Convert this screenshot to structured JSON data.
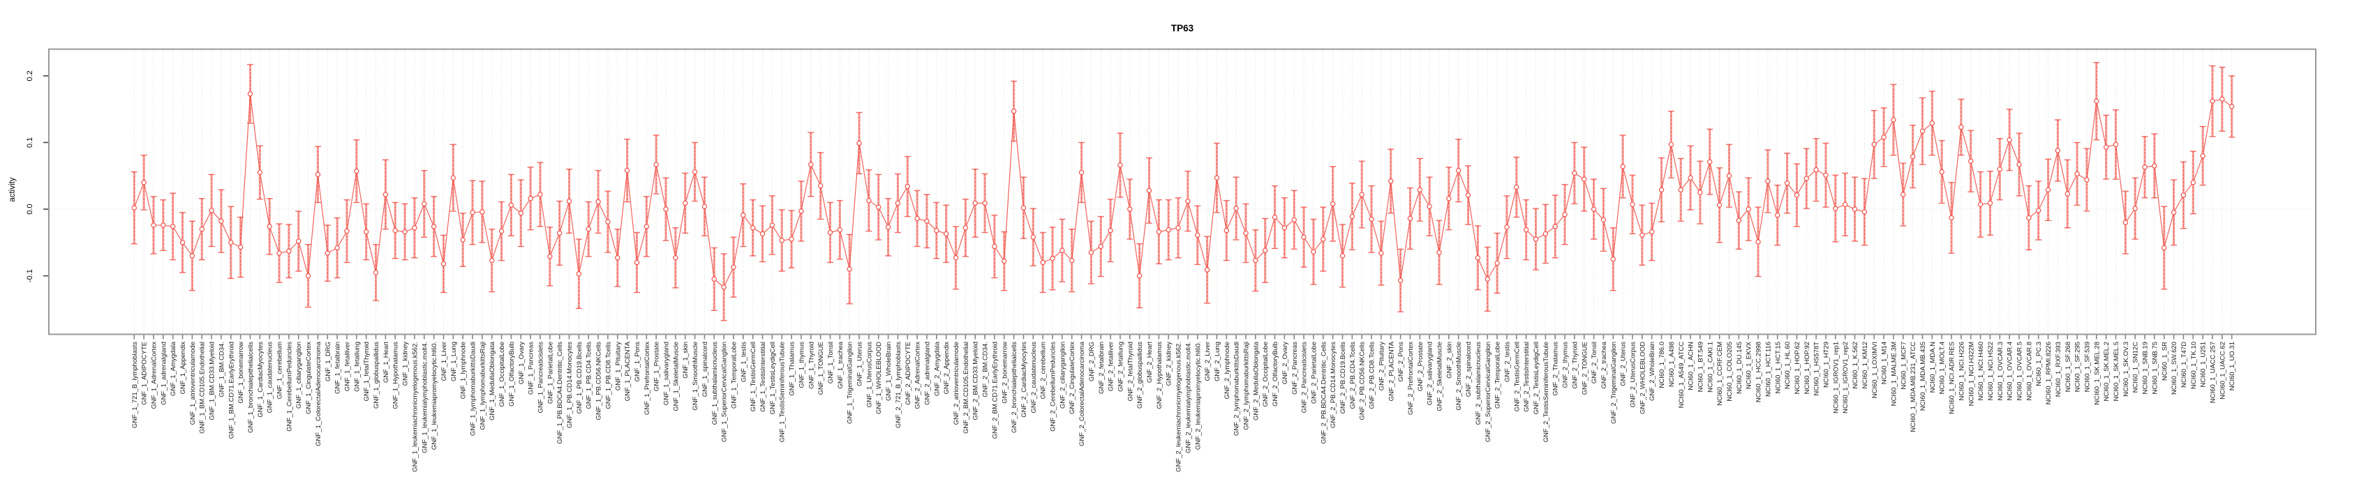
{
  "figure": {
    "title": "TP63"
  },
  "chart_data": {
    "type": "line",
    "subtype": "point-estimates-with-error-bars",
    "title": "TP63",
    "xlabel": "",
    "ylabel": "activity",
    "ylim": [
      -0.188,
      0.24
    ],
    "yticks": [
      0.2,
      0.1,
      0.0,
      -0.1
    ],
    "ytick_labels": [
      "0.2",
      "0.1",
      "0.0",
      "-0.1"
    ],
    "grid": "dotted vertical line at every category; dotted horizontal line at y=0",
    "legend_position": "none",
    "marker": "open-circle",
    "error_bars": true,
    "colors": {
      "point_line": "#f0524a",
      "error_bar": "#f6a39d",
      "grid": "#d6d6d6",
      "frame": "#999999",
      "x_tick": "#828282",
      "tick_label": "#1a1a1a",
      "title": "#000000"
    },
    "categories": [
      "GNF_1_721_B_lymphoblasts",
      "GNF_1_ADIPOCYTE",
      "GNF_1_AdrenalCortex",
      "GNF_1_adrenalgland",
      "GNF_1_Amygdala",
      "GNF_1_Appendix",
      "GNF_1_atrioventricularnode",
      "GNF_1_BM.CD105.Endothelial",
      "GNF_1_BM.CD33.Myeloid",
      "GNF_1_BM.CD34.",
      "GNF_1_BM.CD71.EarlyErythroid",
      "GNF_1_bonemarrow",
      "GNF_1_bronchialepithelialcells",
      "GNF_1_CardiacMyocytes",
      "GNF_1_caudatenucleus",
      "GNF_1_cerebellum",
      "GNF_1_CerebellumPeduncles",
      "GNF_1_ciliaryganglion",
      "GNF_1_CingulateCortex",
      "GNF_1_ColorectalAdenocarcinoma",
      "GNF_1_DRG",
      "GNF_1_fetalbrain",
      "GNF_1_fetalliver",
      "GNF_1_fetallung",
      "GNF_1_fetalThyroid",
      "GNF_1_globuspallidus",
      "GNF_1_Heart",
      "GNF_1_Hypothalamus",
      "GNF_1_kidney",
      "GNF_1_leukemiachronicmyelogenous.k562.",
      "GNF_1_leukemialymphoblastic.molt4.",
      "GNF_1_leukemiapromyelocytic.hl60.",
      "GNF_1_Liver",
      "GNF_1_Lung",
      "GNF_1_lymphnode",
      "GNF_1_lymphomaburkittsDaudi",
      "GNF_1_lymphomaburkittsRaji",
      "GNF_1_MedullaOblongata",
      "GNF_1_OccipitalLobe",
      "GNF_1_OlfactoryBulb",
      "GNF_1_Ovary",
      "GNF_1_Pancreas",
      "GNF_1_Pancreaticislets",
      "GNF_1_ParietalLobe",
      "GNF_1_PB.BDCA4.Dentritic_Cells",
      "GNF_1_PB.CD14.Monocytes",
      "GNF_1_PB.CD19.Bcells",
      "GNF_1_PB.CD4.Tcells",
      "GNF_1_PB.CD56.NKCells",
      "GNF_1_PB.CD8.Tcells",
      "GNF_1_Pituitary",
      "GNF_1_PLACENTA",
      "GNF_1_Pons",
      "GNF_1_PrefrontalCortex",
      "GNF_1_Prostate",
      "GNF_1_salivarygland",
      "GNF_1_SkeletalMuscle",
      "GNF_1_skin",
      "GNF_1_SmoothMuscle",
      "GNF_1_spinalcord",
      "GNF_1_subthalamicnucleus",
      "GNF_1_SuperiorCervicalGanglion",
      "GNF_1_TemporalLobe",
      "GNF_1_testis",
      "GNF_1_TestisGermCell",
      "GNF_1_TestisInterstitial",
      "GNF_1_TestisLeydigCell",
      "GNF_1_TestisSeminiferousTubule",
      "GNF_1_Thalamus",
      "GNF_1_thymus",
      "GNF_1_Thyroid",
      "GNF_1_TONGUE",
      "GNF_1_Tonsil",
      "GNF_1_trachea",
      "GNF_1_TrigeminalGanglion",
      "GNF_1_Uterus",
      "GNF_1_UterusCorpus",
      "GNF_1_WHOLEBLOOD",
      "GNF_1_WholeBrain",
      "GNF_2_721_B_lymphoblasts",
      "GNF_2_ADIPOCYTE",
      "GNF_2_AdrenalCortex",
      "GNF_2_adrenalgland",
      "GNF_2_Amygdala",
      "GNF_2_Appendix",
      "GNF_2_atrioventricularnode",
      "GNF_2_BM.CD105.Endothelial",
      "GNF_2_BM.CD33.Myeloid",
      "GNF_2_BM.CD34.",
      "GNF_2_BM.CD71.EarlyErythroid",
      "GNF_2_bonemarrow",
      "GNF_2_bronchialepithelialcells",
      "GNF_2_CardiacMyocytes",
      "GNF_2_caudatenucleus",
      "GNF_2_cerebellum",
      "GNF_2_CerebellumPeduncles",
      "GNF_2_ciliaryganglion",
      "GNF_2_CingulateCortex",
      "GNF_2_ColorectalAdenocarcinoma",
      "GNF_2_DRG",
      "GNF_2_fetalbrain",
      "GNF_2_fetalliver",
      "GNF_2_fetallung",
      "GNF_2_fetalThyroid",
      "GNF_2_globuspallidus",
      "GNF_2_Heart",
      "GNF_2_Hypothalamus",
      "GNF_2_kidney",
      "GNF_2_leukemiachronicmyelogenous.k562.",
      "GNF_2_leukemialymphoblastic.molt4.",
      "GNF_2_leukemiapromyelocytic.hl60.",
      "GNF_2_Liver",
      "GNF_2_Lung",
      "GNF_2_lymphnode",
      "GNF_2_lymphomaburkittsDaudi",
      "GNF_2_lymphomaburkittsRaji",
      "GNF_2_MedullaOblongata",
      "GNF_2_OccipitalLobe",
      "GNF_2_OlfactoryBulb",
      "GNF_2_Ovary",
      "GNF_2_Pancreas",
      "GNF_2_Pancreaticislets",
      "GNF_2_ParietalLobe",
      "GNF_2_PB.BDCA4.Dentritic_Cells",
      "GNF_2_PB.CD14.Monocytes",
      "GNF_2_PB.CD19.Bcells",
      "GNF_2_PB.CD4.Tcells",
      "GNF_2_PB.CD56.NKCells",
      "GNF_2_PB.CD8.Tcells",
      "GNF_2_Pituitary",
      "GNF_2_PLACENTA",
      "GNF_2_Pons",
      "GNF_2_PrefrontalCortex",
      "GNF_2_Prostate",
      "GNF_2_salivarygland",
      "GNF_2_SkeletalMuscle",
      "GNF_2_skin",
      "GNF_2_SmoothMuscle",
      "GNF_2_spinalcord",
      "GNF_2_subthalamicnucleus",
      "GNF_2_SuperiorCervicalGanglion",
      "GNF_2_TemporalLobe",
      "GNF_2_testis",
      "GNF_2_TestisGermCell",
      "GNF_2_TestisInterstitial",
      "GNF_2_TestisLeydigCell",
      "GNF_2_TestisSeminiferousTubule",
      "GNF_2_Thalamus",
      "GNF_2_thymus",
      "GNF_2_Thyroid",
      "GNF_2_TONGUE",
      "GNF_2_Tonsil",
      "GNF_2_trachea",
      "GNF_2_TrigeminalGanglion",
      "GNF_2_Uterus",
      "GNF_2_UterusCorpus",
      "GNF_2_WHOLEBLOOD",
      "GNF_2_WholeBrain",
      "NCI60_1_786.0",
      "NCI60_1_A498",
      "NCI60_1_A549_ATCC",
      "NCI60_1_ACHN",
      "NCI60_1_BT.549",
      "NCI60_1_CAKI.1",
      "NCI60_1_CCRF.CEM",
      "NCI60_1_COLO205",
      "NCI60_1_DU.145",
      "NCI60_1_EKVX",
      "NCI60_1_HCC.2998",
      "NCI60_1_HCT.116",
      "NCI60_1_HCT.15",
      "NCI60_1_HL.60",
      "NCI60_1_HOP.62",
      "NCI60_1_HOP.92",
      "NCI60_1_HS578T",
      "NCI60_1_HT29",
      "NCI60_1_IGROV1_rep1",
      "NCI60_1_IGROV1_rep2",
      "NCI60_1_K.562",
      "NCI60_1_KM12",
      "NCI60_1_LOXIMVI",
      "NCI60_1_M14",
      "NCI60_1_MALME.3M",
      "NCI60_1_MCF7",
      "NCI60_1_MDA.MB.231_ATCC",
      "NCI60_1_MDA.MB.435",
      "NCI60_1_MDA.N",
      "NCI60_1_MOLT.4",
      "NCI60_1_NCI.ADR.RES",
      "NCI60_1_NCI.H226",
      "NCI60_1_NCI.H322M",
      "NCI60_1_NCI.H460",
      "NCI60_1_NCI.H522",
      "NCI60_1_OVCAR.3",
      "NCI60_1_OVCAR.4",
      "NCI60_1_OVCAR.5",
      "NCI60_1_OVCAR.8",
      "NCI60_1_PC.3",
      "NCI60_1_RPMI.8226",
      "NCI60_1_RXF.393",
      "NCI60_1_SF.268",
      "NCI60_1_SF.295",
      "NCI60_1_SF.539",
      "NCI60_1_SK.MEL.28",
      "NCI60_1_SK.MEL.2",
      "NCI60_1_SK.MEL.5",
      "NCI60_1_SK.OV.3",
      "NCI60_1_SN12C",
      "NCI60_1_SNB.19",
      "NCI60_1_SNB.75",
      "NCI60_1_SR",
      "NCI60_1_SW.620",
      "NCI60_1_T47D",
      "NCI60_1_TK.10",
      "NCI60_1_U251",
      "NCI60_1_UACC.257",
      "NCI60_1_UACC.62",
      "NCI60_1_UO.31"
    ],
    "values": [
      0.002,
      0.04,
      -0.024,
      -0.024,
      -0.026,
      -0.05,
      -0.07,
      -0.03,
      -0.002,
      -0.018,
      -0.05,
      -0.057,
      0.173,
      0.055,
      -0.026,
      -0.066,
      -0.063,
      -0.048,
      -0.1,
      0.052,
      -0.066,
      -0.058,
      -0.033,
      0.057,
      -0.034,
      -0.095,
      0.022,
      -0.032,
      -0.034,
      -0.028,
      0.008,
      -0.026,
      -0.082,
      0.047,
      -0.046,
      -0.005,
      -0.004,
      -0.077,
      -0.033,
      0.006,
      -0.006,
      0.016,
      0.022,
      -0.071,
      -0.036,
      0.012,
      -0.097,
      -0.03,
      0.011,
      -0.019,
      -0.073,
      0.058,
      -0.08,
      -0.026,
      0.067,
      0.0,
      -0.073,
      0.009,
      0.056,
      0.004,
      -0.105,
      -0.117,
      -0.087,
      -0.009,
      -0.028,
      -0.037,
      -0.024,
      -0.047,
      -0.045,
      -0.003,
      0.067,
      0.035,
      -0.035,
      -0.031,
      -0.09,
      0.099,
      0.013,
      0.003,
      -0.027,
      0.009,
      0.034,
      -0.014,
      -0.018,
      -0.032,
      -0.037,
      -0.073,
      -0.028,
      0.009,
      0.009,
      -0.056,
      -0.078,
      0.147,
      0.002,
      -0.042,
      -0.08,
      -0.074,
      -0.062,
      -0.077,
      0.055,
      -0.065,
      -0.056,
      -0.032,
      0.066,
      0.0,
      -0.1,
      0.028,
      -0.034,
      -0.031,
      -0.028,
      0.012,
      -0.039,
      -0.091,
      0.047,
      -0.032,
      0.001,
      -0.036,
      -0.077,
      -0.062,
      -0.012,
      -0.028,
      -0.016,
      -0.042,
      -0.064,
      -0.045,
      0.008,
      -0.07,
      -0.011,
      0.022,
      -0.015,
      -0.066,
      0.042,
      -0.107,
      -0.014,
      0.029,
      0.004,
      -0.065,
      0.016,
      0.058,
      0.021,
      -0.073,
      -0.105,
      -0.081,
      -0.027,
      0.033,
      -0.031,
      -0.045,
      -0.037,
      -0.026,
      -0.008,
      0.054,
      0.045,
      0.0,
      -0.016,
      -0.075,
      0.064,
      0.007,
      -0.039,
      -0.034,
      0.029,
      0.097,
      0.029,
      0.047,
      0.025,
      0.071,
      0.006,
      0.05,
      -0.017,
      0.0,
      -0.049,
      0.042,
      -0.009,
      0.039,
      0.021,
      0.046,
      0.059,
      0.051,
      0.001,
      0.007,
      0.0,
      -0.004,
      0.097,
      0.108,
      0.134,
      0.022,
      0.079,
      0.117,
      0.129,
      0.056,
      -0.013,
      0.123,
      0.072,
      0.007,
      0.009,
      0.06,
      0.104,
      0.067,
      -0.013,
      -0.002,
      0.029,
      0.088,
      0.023,
      0.053,
      0.044,
      0.162,
      0.093,
      0.097,
      -0.02,
      0.001,
      0.063,
      0.065,
      -0.058,
      -0.005,
      0.021,
      0.04,
      0.08,
      0.162,
      0.165,
      0.154
    ],
    "errors": [
      0.054,
      0.041,
      0.043,
      0.038,
      0.05,
      0.045,
      0.052,
      0.046,
      0.054,
      0.047,
      0.054,
      0.045,
      0.044,
      0.04,
      0.042,
      0.044,
      0.04,
      0.045,
      0.047,
      0.042,
      0.042,
      0.045,
      0.047,
      0.047,
      0.042,
      0.042,
      0.052,
      0.042,
      0.042,
      0.045,
      0.05,
      0.045,
      0.043,
      0.05,
      0.04,
      0.048,
      0.046,
      0.047,
      0.044,
      0.046,
      0.05,
      0.047,
      0.048,
      0.044,
      0.048,
      0.048,
      0.052,
      0.041,
      0.047,
      0.046,
      0.043,
      0.047,
      0.045,
      0.045,
      0.044,
      0.047,
      0.045,
      0.045,
      0.044,
      0.044,
      0.047,
      0.05,
      0.045,
      0.047,
      0.042,
      0.042,
      0.044,
      0.046,
      0.043,
      0.045,
      0.048,
      0.05,
      0.045,
      0.044,
      0.052,
      0.046,
      0.046,
      0.049,
      0.043,
      0.044,
      0.045,
      0.042,
      0.04,
      0.042,
      0.043,
      0.047,
      0.043,
      0.051,
      0.044,
      0.047,
      0.044,
      0.045,
      0.046,
      0.043,
      0.045,
      0.047,
      0.047,
      0.047,
      0.045,
      0.047,
      0.045,
      0.047,
      0.048,
      0.045,
      0.048,
      0.049,
      0.048,
      0.045,
      0.045,
      0.045,
      0.044,
      0.05,
      0.052,
      0.045,
      0.047,
      0.044,
      0.046,
      0.048,
      0.047,
      0.045,
      0.044,
      0.045,
      0.049,
      0.048,
      0.056,
      0.047,
      0.05,
      0.05,
      0.05,
      0.048,
      0.048,
      0.047,
      0.046,
      0.047,
      0.044,
      0.048,
      0.047,
      0.047,
      0.044,
      0.048,
      0.048,
      0.045,
      0.047,
      0.045,
      0.045,
      0.046,
      0.044,
      0.047,
      0.045,
      0.046,
      0.048,
      0.045,
      0.047,
      0.047,
      0.047,
      0.044,
      0.045,
      0.043,
      0.048,
      0.05,
      0.047,
      0.048,
      0.047,
      0.049,
      0.056,
      0.047,
      0.043,
      0.047,
      0.052,
      0.047,
      0.045,
      0.045,
      0.047,
      0.045,
      0.047,
      0.048,
      0.05,
      0.047,
      0.048,
      0.05,
      0.051,
      0.044,
      0.053,
      0.047,
      0.047,
      0.05,
      0.048,
      0.047,
      0.053,
      0.042,
      0.046,
      0.049,
      0.048,
      0.046,
      0.046,
      0.047,
      0.048,
      0.044,
      0.046,
      0.046,
      0.051,
      0.047,
      0.047,
      0.058,
      0.048,
      0.052,
      0.047,
      0.046,
      0.046,
      0.048,
      0.062,
      0.049,
      0.05,
      0.047,
      0.044,
      0.053,
      0.048,
      0.046
    ]
  }
}
